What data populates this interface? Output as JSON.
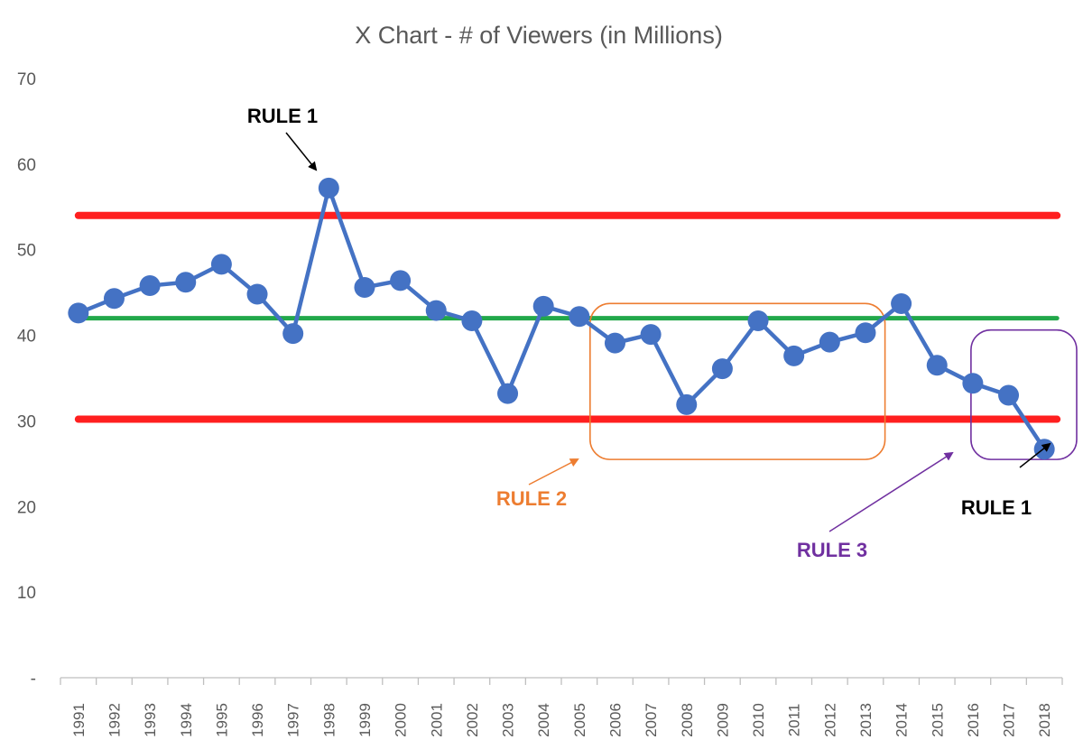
{
  "chart_data": {
    "type": "line",
    "title": "X Chart - # of Viewers (in Millions)",
    "xlabel": "",
    "ylabel": "",
    "x": [
      "1991",
      "1992",
      "1993",
      "1994",
      "1995",
      "1996",
      "1997",
      "1998",
      "1999",
      "2000",
      "2001",
      "2002",
      "2003",
      "2004",
      "2005",
      "2006",
      "2007",
      "2008",
      "2009",
      "2010",
      "2011",
      "2012",
      "2013",
      "2014",
      "2015",
      "2016",
      "2017",
      "2018"
    ],
    "series": [
      {
        "values": [
          42.6,
          44.3,
          45.8,
          46.2,
          48.3,
          44.8,
          40.2,
          57.2,
          45.6,
          46.4,
          42.9,
          41.7,
          33.2,
          43.4,
          42.2,
          39.1,
          40.1,
          31.9,
          36.1,
          41.7,
          37.6,
          39.2,
          40.3,
          43.7,
          36.5,
          34.4,
          33.0,
          26.7
        ]
      }
    ],
    "control_lines": [
      {
        "value": 54.0,
        "color": "#ff1f1f"
      },
      {
        "value": 42.0,
        "color": "#22a84a"
      },
      {
        "value": 30.2,
        "color": "#ff1f1f"
      }
    ],
    "ylim": [
      0,
      70
    ],
    "yticks": [
      "-",
      "10",
      "20",
      "30",
      "40",
      "50",
      "60",
      "70"
    ],
    "grid": false,
    "series_color": "#4472c4",
    "annotations": [
      {
        "text": "RULE 1",
        "color": "#000000"
      },
      {
        "text": "RULE 2",
        "color": "#ed7d31"
      },
      {
        "text": "RULE 3",
        "color": "#7030a0"
      },
      {
        "text": "RULE 1",
        "color": "#000000"
      }
    ]
  }
}
